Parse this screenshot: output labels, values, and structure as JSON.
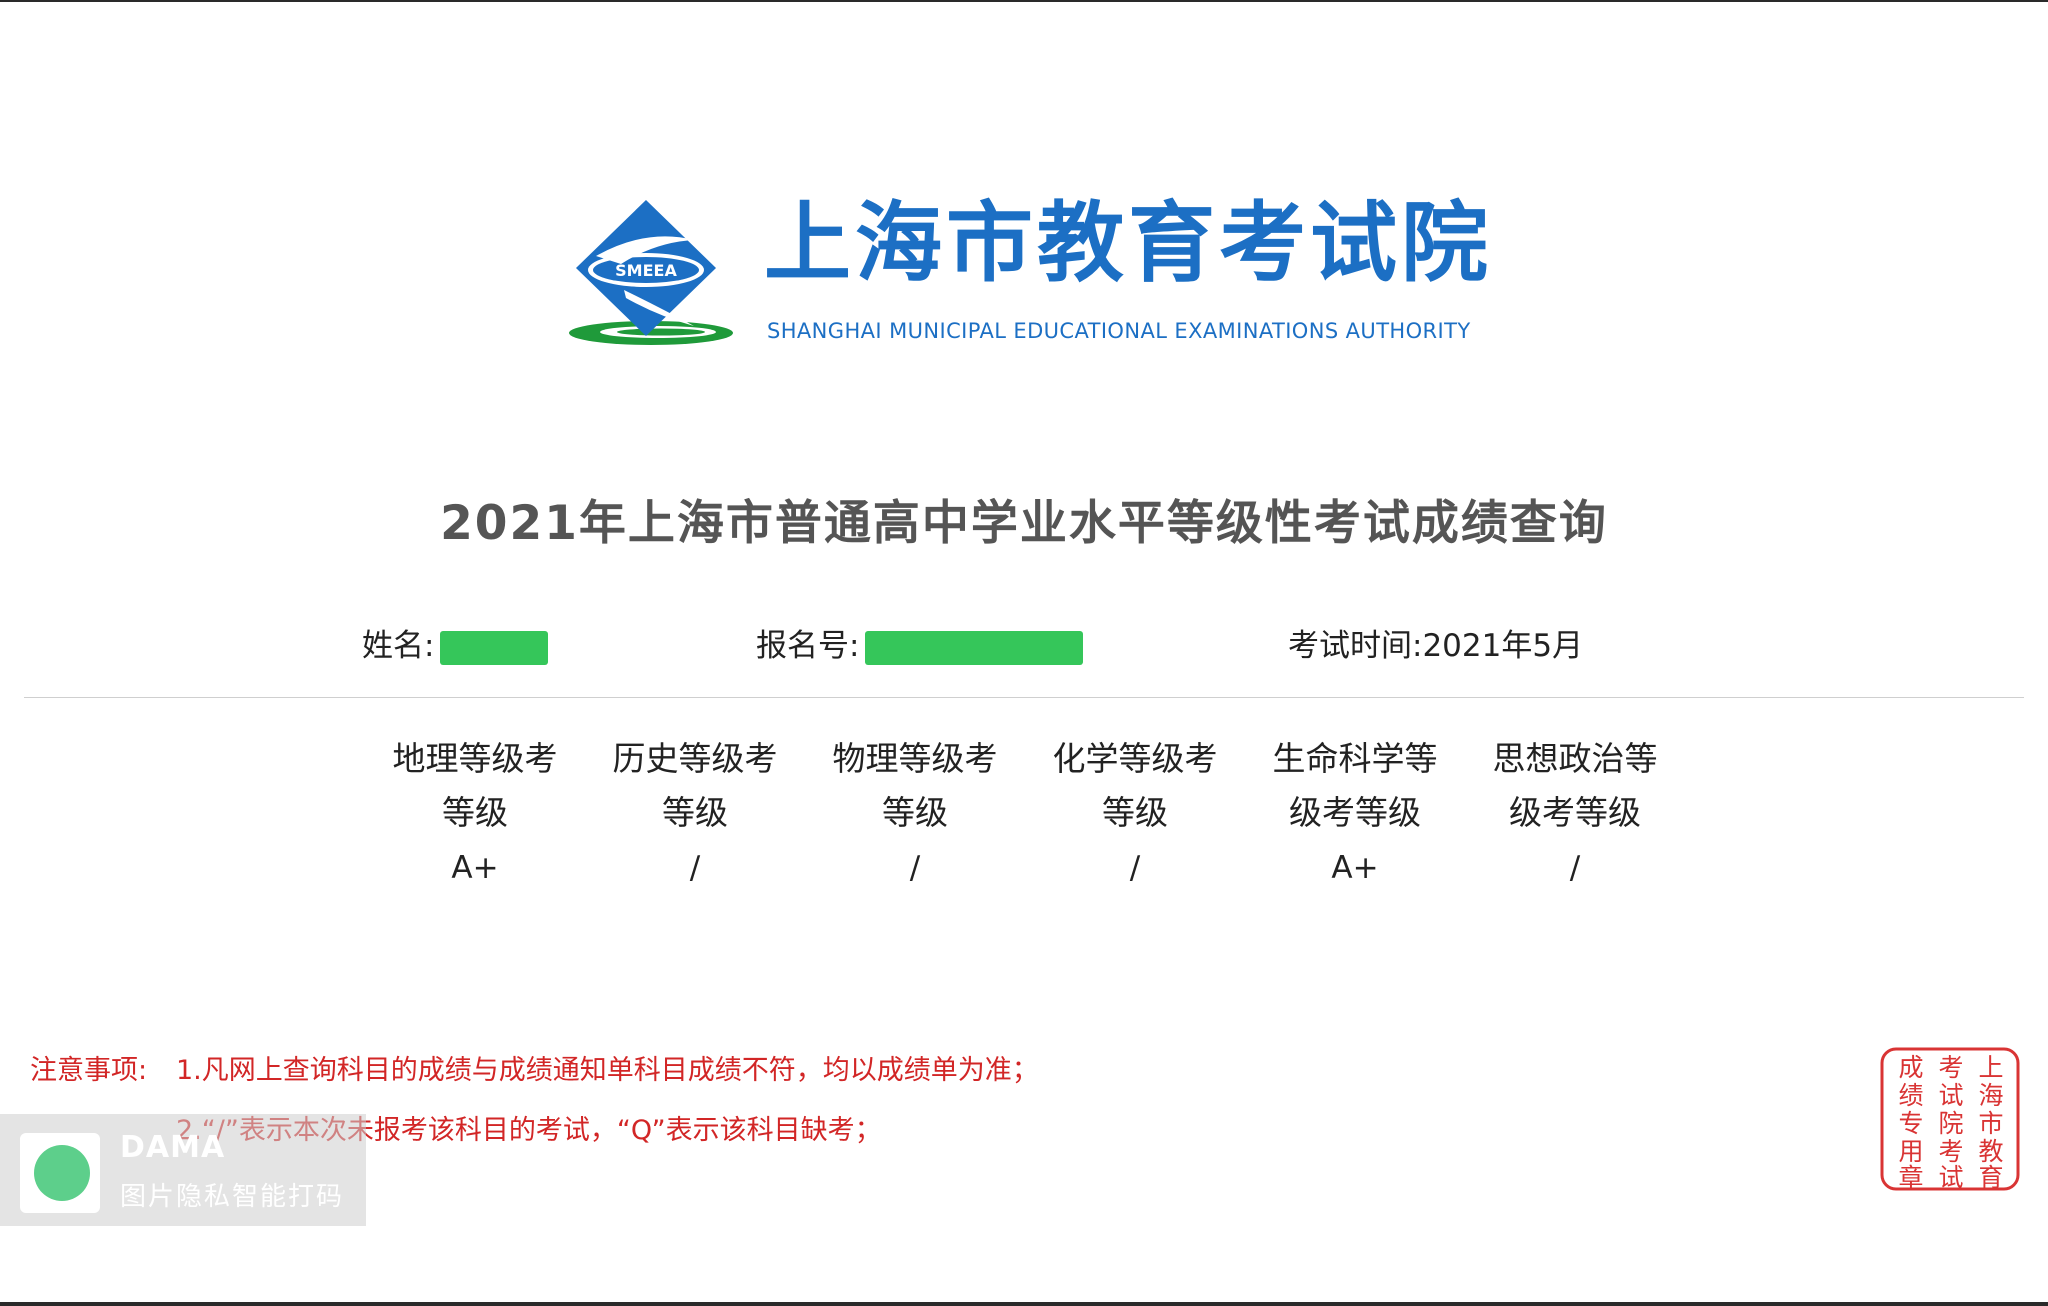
{
  "header": {
    "logo_emblem_text": "SMEEA",
    "org_name_cn": "上海市教育考试院",
    "org_name_en": "SHANGHAI MUNICIPAL EDUCATIONAL EXAMINATIONS AUTHORITY"
  },
  "page_title": "2021年上海市普通高中学业水平等级性考试成绩查询",
  "info": {
    "name_label": "姓名:",
    "reg_label": "报名号:",
    "exam_time_label": "考试时间:",
    "exam_time_value": "2021年5月"
  },
  "grades": [
    {
      "header_line1": "地理等级考",
      "header_line2": "等级",
      "value": "A+"
    },
    {
      "header_line1": "历史等级考",
      "header_line2": "等级",
      "value": "/"
    },
    {
      "header_line1": "物理等级考",
      "header_line2": "等级",
      "value": "/"
    },
    {
      "header_line1": "化学等级考",
      "header_line2": "等级",
      "value": "/"
    },
    {
      "header_line1": "生命科学等",
      "header_line2": "级考等级",
      "value": "A+"
    },
    {
      "header_line1": "思想政治等",
      "header_line2": "级考等级",
      "value": "/"
    }
  ],
  "notes": {
    "label": "注意事项:",
    "items": [
      "1.凡网上查询科目的成绩与成绩通知单科目成绩不符，均以成绩单为准；",
      "2.“/”表示本次未报考该科目的考试，“Q”表示该科目缺考；"
    ]
  },
  "watermark": {
    "title": "DAMA",
    "subtitle": "图片隐私智能打码"
  },
  "seal": {
    "col1": [
      "上",
      "海",
      "市",
      "教",
      "育"
    ],
    "col2": [
      "考",
      "试",
      "院",
      "考",
      "试"
    ],
    "col3": [
      "成",
      "绩",
      "专",
      "用",
      "章"
    ]
  }
}
